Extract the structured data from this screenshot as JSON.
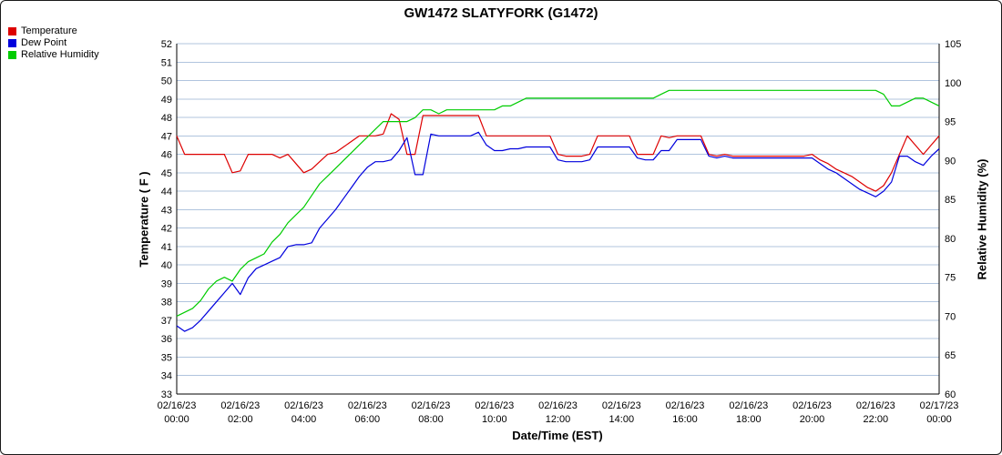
{
  "title": "GW1472 SLATYFORK (G1472)",
  "legend": [
    {
      "label": "Temperature",
      "color": "#dd0000"
    },
    {
      "label": "Dew Point",
      "color": "#0000dd"
    },
    {
      "label": "Relative Humidity",
      "color": "#00cc00"
    }
  ],
  "chart_data": {
    "type": "line",
    "title": "GW1472 SLATYFORK (G1472)",
    "xlabel": "Date/Time (EST)",
    "ylabel_left": "Temperature ( F )",
    "ylabel_right": "Relative Humidity (%)",
    "y_left_range": [
      33,
      52
    ],
    "y_left_tick_step": 1,
    "y_right_range": [
      60,
      105
    ],
    "y_right_tick_step": 5,
    "x_range_hours": [
      0,
      24
    ],
    "grid_on": true,
    "grid_color": "#b0c4de",
    "legend_position": "top-left",
    "x_ticks": [
      {
        "date": "02/16/23",
        "time": "00:00",
        "hour": 0
      },
      {
        "date": "02/16/23",
        "time": "02:00",
        "hour": 2
      },
      {
        "date": "02/16/23",
        "time": "04:00",
        "hour": 4
      },
      {
        "date": "02/16/23",
        "time": "06:00",
        "hour": 6
      },
      {
        "date": "02/16/23",
        "time": "08:00",
        "hour": 8
      },
      {
        "date": "02/16/23",
        "time": "10:00",
        "hour": 10
      },
      {
        "date": "02/16/23",
        "time": "12:00",
        "hour": 12
      },
      {
        "date": "02/16/23",
        "time": "14:00",
        "hour": 14
      },
      {
        "date": "02/16/23",
        "time": "16:00",
        "hour": 16
      },
      {
        "date": "02/16/23",
        "time": "18:00",
        "hour": 18
      },
      {
        "date": "02/16/23",
        "time": "20:00",
        "hour": 20
      },
      {
        "date": "02/16/23",
        "time": "22:00",
        "hour": 22
      },
      {
        "date": "02/17/23",
        "time": "00:00",
        "hour": 24
      }
    ],
    "x_hours": [
      0,
      0.25,
      0.5,
      0.75,
      1,
      1.25,
      1.5,
      1.75,
      2,
      2.25,
      2.5,
      2.75,
      3,
      3.25,
      3.5,
      3.75,
      4,
      4.25,
      4.5,
      4.75,
      5,
      5.25,
      5.5,
      5.75,
      6,
      6.25,
      6.5,
      6.75,
      7,
      7.25,
      7.5,
      7.75,
      8,
      8.25,
      8.5,
      8.75,
      9,
      9.25,
      9.5,
      9.75,
      10,
      10.25,
      10.5,
      10.75,
      11,
      11.25,
      11.5,
      11.75,
      12,
      12.25,
      12.5,
      12.75,
      13,
      13.25,
      13.5,
      13.75,
      14,
      14.25,
      14.5,
      14.75,
      15,
      15.25,
      15.5,
      15.75,
      16,
      16.25,
      16.5,
      16.75,
      17,
      17.25,
      17.5,
      17.75,
      18,
      18.25,
      18.5,
      18.75,
      19,
      19.25,
      19.5,
      19.75,
      20,
      20.25,
      20.5,
      20.75,
      21,
      21.25,
      21.5,
      21.75,
      22,
      22.25,
      22.5,
      22.75,
      23,
      23.25,
      23.5,
      23.75,
      24
    ],
    "series": [
      {
        "name": "Temperature",
        "axis": "left",
        "unit": "F",
        "color": "#dd0000",
        "values": [
          47,
          46,
          46,
          46,
          46,
          46,
          46,
          45,
          45.1,
          46,
          46,
          46,
          46,
          45.8,
          46,
          45.5,
          45,
          45.2,
          45.6,
          46,
          46.1,
          46.4,
          46.7,
          47,
          47,
          47,
          47.1,
          48.2,
          47.9,
          46,
          46,
          48.1,
          48.1,
          48.1,
          48.1,
          48.1,
          48.1,
          48.1,
          48.1,
          47,
          47,
          47,
          47,
          47,
          47,
          47,
          47,
          47,
          46,
          45.9,
          45.9,
          45.9,
          46,
          47,
          47,
          47,
          47,
          47,
          46,
          46,
          46,
          47,
          46.9,
          47,
          47,
          47,
          47,
          46,
          45.9,
          46,
          45.9,
          45.9,
          45.9,
          45.9,
          45.9,
          45.9,
          45.9,
          45.9,
          45.9,
          45.9,
          46,
          45.7,
          45.5,
          45.2,
          45,
          44.8,
          44.5,
          44.2,
          44,
          44.3,
          45,
          46,
          47,
          46.5,
          46,
          46.5,
          47
        ]
      },
      {
        "name": "Dew Point",
        "axis": "left",
        "unit": "F",
        "color": "#0000dd",
        "values": [
          36.7,
          36.4,
          36.6,
          37,
          37.5,
          38,
          38.5,
          39,
          38.4,
          39.3,
          39.8,
          40,
          40.2,
          40.4,
          41,
          41.1,
          41.1,
          41.2,
          42,
          42.5,
          43,
          43.6,
          44.2,
          44.8,
          45.3,
          45.6,
          45.6,
          45.7,
          46.2,
          46.9,
          44.9,
          44.9,
          47.1,
          47,
          47,
          47,
          47,
          47,
          47.2,
          46.5,
          46.2,
          46.2,
          46.3,
          46.3,
          46.4,
          46.4,
          46.4,
          46.4,
          45.7,
          45.6,
          45.6,
          45.6,
          45.7,
          46.4,
          46.4,
          46.4,
          46.4,
          46.4,
          45.8,
          45.7,
          45.7,
          46.2,
          46.2,
          46.8,
          46.8,
          46.8,
          46.8,
          45.9,
          45.8,
          45.9,
          45.8,
          45.8,
          45.8,
          45.8,
          45.8,
          45.8,
          45.8,
          45.8,
          45.8,
          45.8,
          45.8,
          45.5,
          45.2,
          45,
          44.7,
          44.4,
          44.1,
          43.9,
          43.7,
          44,
          44.5,
          45.9,
          45.9,
          45.6,
          45.4,
          45.9,
          46.3
        ]
      },
      {
        "name": "Relative Humidity",
        "axis": "right",
        "unit": "%",
        "color": "#00cc00",
        "values": [
          70,
          70.5,
          71,
          72,
          73.5,
          74.5,
          75,
          74.5,
          76,
          77,
          77.5,
          78,
          79.5,
          80.5,
          82,
          83,
          84,
          85.5,
          87,
          88,
          89,
          90,
          91,
          92,
          93,
          94,
          95,
          95,
          95,
          95,
          95.5,
          96.5,
          96.5,
          96,
          96.5,
          96.5,
          96.5,
          96.5,
          96.5,
          96.5,
          96.5,
          97,
          97,
          97.5,
          98,
          98,
          98,
          98,
          98,
          98,
          98,
          98,
          98,
          98,
          98,
          98,
          98,
          98,
          98,
          98,
          98,
          98.5,
          99,
          99,
          99,
          99,
          99,
          99,
          99,
          99,
          99,
          99,
          99,
          99,
          99,
          99,
          99,
          99,
          99,
          99,
          99,
          99,
          99,
          99,
          99,
          99,
          99,
          99,
          99,
          98.5,
          97,
          97,
          97.5,
          98,
          98,
          97.5,
          97
        ]
      }
    ]
  }
}
